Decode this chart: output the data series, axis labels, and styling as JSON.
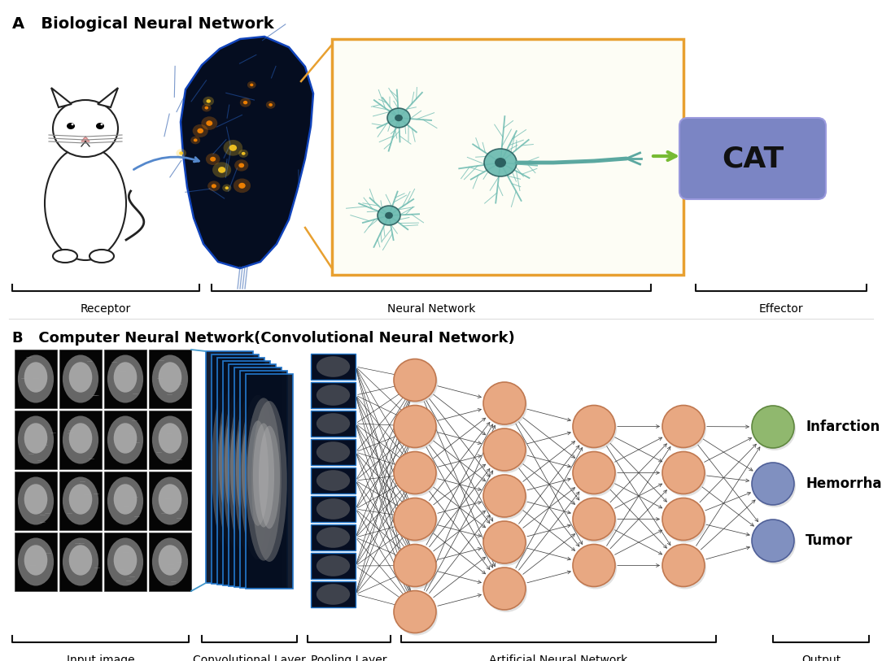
{
  "title_a": "A   Biological Neural Network",
  "title_b": "B   Computer Neural Network(Convolutional Neural Network)",
  "label_receptor": "Receptor",
  "label_neural_network": "Neural Network",
  "label_effector": "Effector",
  "label_input": "Input image",
  "label_conv": "Convolutional Layer",
  "label_pool": "Pooling Layer",
  "label_ann": "Artificial Neural Network",
  "label_output": "Output",
  "cat_label": "CAT",
  "infarction": "Infarction",
  "hemorrhage": "Hemorrhage",
  "tumor": "Tumor",
  "neuron_color": "#E8A882",
  "neuron_edge": "#C07850",
  "green_neuron": "#90B86E",
  "green_edge": "#608840",
  "blue_neuron": "#8090C0",
  "blue_edge": "#506098",
  "teal_color": "#5BA8A0",
  "teal_dark": "#3A7870",
  "orange_box": "#E8A030",
  "purple_cat": "#7B85C4",
  "bg_color": "#FFFFFF",
  "conn_color": "#444444",
  "blue_line": "#4499CC",
  "bracket_color": "#111111"
}
